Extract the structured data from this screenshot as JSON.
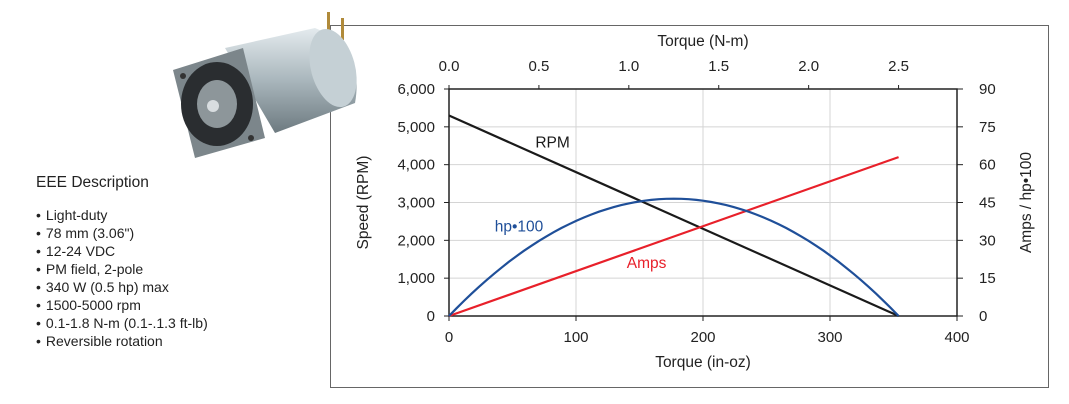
{
  "description": {
    "title": "EEE Description",
    "items": [
      "Light-duty",
      "78 mm (3.06\")",
      "12-24 VDC",
      "PM field, 2-pole",
      "340 W (0.5 hp) max",
      "1500-5000 rpm",
      "0.1-1.8 N-m (0.1-.1.3 ft-lb)",
      "Reversible rotation"
    ]
  },
  "chart_data": {
    "type": "line",
    "xlabel": "Torque (in-oz)",
    "x2label": "Torque (N-m)",
    "ylabel": "Speed (RPM)",
    "y2label": "Amps / hp•100",
    "xlim": [
      0,
      400
    ],
    "x2lim": [
      0,
      2.825
    ],
    "ylim": [
      0,
      6000
    ],
    "y2lim": [
      0,
      90
    ],
    "xticks": [
      "0",
      "100",
      "200",
      "300",
      "400"
    ],
    "x2ticks": [
      "0.0",
      "0.5",
      "1.0",
      "1.5",
      "2.0",
      "2.5"
    ],
    "yticks": [
      "0",
      "1,000",
      "2,000",
      "3,000",
      "4,000",
      "5,000",
      "6,000"
    ],
    "y2ticks": [
      "0",
      "15",
      "30",
      "45",
      "60",
      "75",
      "90"
    ],
    "grid": true,
    "series": [
      {
        "name": "RPM",
        "axis": "left",
        "color": "#1a1a1a",
        "x": [
          0,
          354
        ],
        "y": [
          5300,
          0
        ]
      },
      {
        "name": "Amps",
        "axis": "right",
        "color": "#e8202a",
        "x": [
          0,
          354
        ],
        "y": [
          0,
          63
        ]
      },
      {
        "name": "hp•100",
        "axis": "right",
        "color": "#1f4f99",
        "x": [
          0,
          44,
          88,
          133,
          177,
          221,
          265,
          310,
          354
        ],
        "y": [
          0,
          20.3,
          34.9,
          43.6,
          46.5,
          43.6,
          34.9,
          20.3,
          0
        ]
      }
    ]
  }
}
